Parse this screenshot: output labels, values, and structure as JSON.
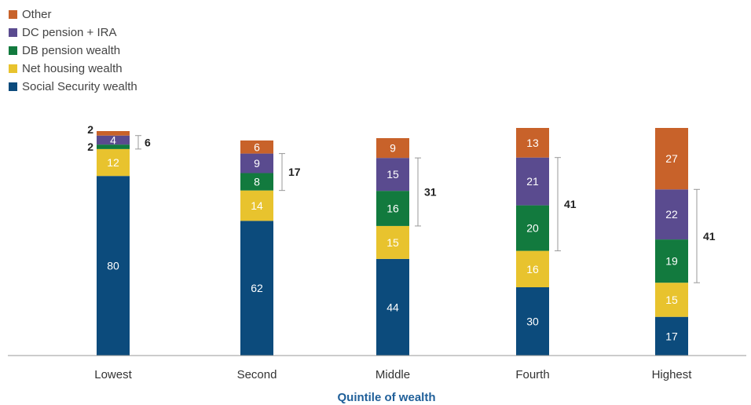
{
  "colors": {
    "Other": "#c8622a",
    "DC pension + IRA": "#5a4b8f",
    "DB pension wealth": "#127a3e",
    "Net housing wealth": "#e8c32e",
    "Social Security wealth": "#0c4b7c",
    "axis_title": "#1f5f99"
  },
  "chart_data": {
    "type": "bar",
    "stacked": true,
    "categories": [
      "Lowest",
      "Second",
      "Middle",
      "Fourth",
      "Highest"
    ],
    "series": [
      {
        "name": "Social Security wealth",
        "values": [
          80,
          62,
          44,
          30,
          17
        ]
      },
      {
        "name": "Net housing wealth",
        "values": [
          12,
          14,
          15,
          16,
          15
        ]
      },
      {
        "name": "DB pension wealth",
        "values": [
          2,
          8,
          16,
          20,
          19
        ]
      },
      {
        "name": "DC pension + IRA",
        "values": [
          4,
          9,
          15,
          21,
          22
        ]
      },
      {
        "name": "Other",
        "values": [
          2,
          6,
          9,
          13,
          27
        ]
      }
    ],
    "legend_order": [
      "Other",
      "DC pension + IRA",
      "DB pension wealth",
      "Net housing wealth",
      "Social Security wealth"
    ],
    "legend_position": "top-left",
    "bracket_totals": [
      "6",
      "17",
      "31",
      "41",
      "41"
    ],
    "lowest_outside_labels": [
      "2",
      "2"
    ],
    "xlabel": "Quintile of wealth",
    "ylabel": "",
    "ylim": [
      0,
      100
    ],
    "grid": false
  }
}
